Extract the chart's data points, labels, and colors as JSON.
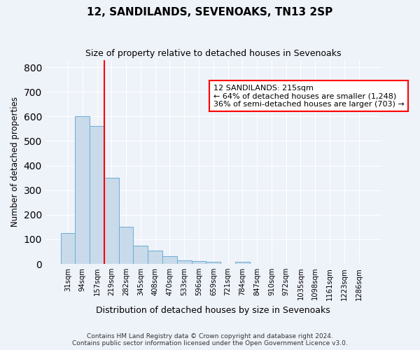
{
  "title": "12, SANDILANDS, SEVENOAKS, TN13 2SP",
  "subtitle": "Size of property relative to detached houses in Sevenoaks",
  "xlabel": "Distribution of detached houses by size in Sevenoaks",
  "ylabel": "Number of detached properties",
  "bar_labels": [
    "31sqm",
    "94sqm",
    "157sqm",
    "219sqm",
    "282sqm",
    "345sqm",
    "408sqm",
    "470sqm",
    "533sqm",
    "596sqm",
    "659sqm",
    "721sqm",
    "784sqm",
    "847sqm",
    "910sqm",
    "972sqm",
    "1035sqm",
    "1098sqm",
    "1161sqm",
    "1223sqm",
    "1286sqm"
  ],
  "bar_values": [
    125,
    600,
    560,
    350,
    150,
    75,
    55,
    32,
    15,
    12,
    8,
    0,
    10,
    0,
    0,
    0,
    0,
    0,
    0,
    0,
    0
  ],
  "bar_color": "#c9daea",
  "bar_edge_color": "#6aadd5",
  "red_line_index": 2.5,
  "annotation_text_line1": "12 SANDILANDS: 215sqm",
  "annotation_text_line2": "← 64% of detached houses are smaller (1,248)",
  "annotation_text_line3": "36% of semi-detached houses are larger (703) →",
  "annotation_box_color": "white",
  "annotation_box_edge": "red",
  "ylim": [
    0,
    830
  ],
  "yticks": [
    0,
    100,
    200,
    300,
    400,
    500,
    600,
    700,
    800
  ],
  "footer_line1": "Contains HM Land Registry data © Crown copyright and database right 2024.",
  "footer_line2": "Contains public sector information licensed under the Open Government Licence v3.0.",
  "background_color": "#eef2f9",
  "grid_color": "#ffffff",
  "figwidth": 6.0,
  "figheight": 5.0,
  "dpi": 100
}
